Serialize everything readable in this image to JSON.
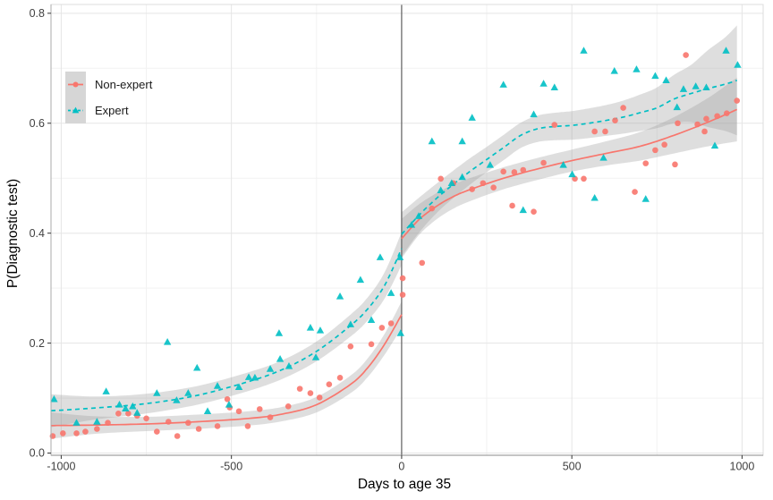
{
  "chart_data": {
    "type": "scatter",
    "subtype": "regression-discontinuity with loess smooth and confidence ribbons",
    "title": "",
    "xlabel": "Days to age 35",
    "ylabel": "P(Diagnostic test)",
    "xlim": [
      -1030,
      1062
    ],
    "ylim": [
      -0.004,
      0.816
    ],
    "x_ticks": [
      -1000,
      -500,
      0,
      500,
      1000
    ],
    "x_minor_ticks": [
      -750,
      -250,
      250,
      750
    ],
    "y_ticks": [
      0.0,
      0.2,
      0.4,
      0.6,
      0.8
    ],
    "y_minor_ticks": [
      0.1,
      0.3,
      0.5,
      0.7
    ],
    "cutoff_line_x": 0,
    "grid": true,
    "legend_position": "inside top-left",
    "band_color": "#9C9C9C",
    "band_opacity": 0.33,
    "cutoff_line_color": "#5f5f5f",
    "axis_text_color": "#404040",
    "series": [
      {
        "name": "Non-expert",
        "color": "#F8766D",
        "marker": "circle",
        "linestyle": "solid",
        "points": [
          [
            -1025,
            0.031
          ],
          [
            -995,
            0.036
          ],
          [
            -955,
            0.036
          ],
          [
            -929,
            0.039
          ],
          [
            -895,
            0.044
          ],
          [
            -863,
            0.055
          ],
          [
            -832,
            0.072
          ],
          [
            -803,
            0.072
          ],
          [
            -777,
            0.068
          ],
          [
            -750,
            0.063
          ],
          [
            -719,
            0.039
          ],
          [
            -685,
            0.057
          ],
          [
            -659,
            0.031
          ],
          [
            -627,
            0.055
          ],
          [
            -596,
            0.044
          ],
          [
            -541,
            0.049
          ],
          [
            -512,
            0.098
          ],
          [
            -505,
            0.083
          ],
          [
            -478,
            0.076
          ],
          [
            -452,
            0.049
          ],
          [
            -417,
            0.08
          ],
          [
            -386,
            0.065
          ],
          [
            -333,
            0.085
          ],
          [
            -299,
            0.117
          ],
          [
            -268,
            0.109
          ],
          [
            -241,
            0.101
          ],
          [
            -213,
            0.125
          ],
          [
            -181,
            0.137
          ],
          [
            -150,
            0.194
          ],
          [
            -89,
            0.198
          ],
          [
            -58,
            0.228
          ],
          [
            -31,
            0.236
          ],
          [
            3,
            0.288
          ],
          [
            3,
            0.318
          ],
          [
            60,
            0.346
          ],
          [
            89,
            0.445
          ],
          [
            115,
            0.499
          ],
          [
            152,
            0.491
          ],
          [
            207,
            0.48
          ],
          [
            239,
            0.491
          ],
          [
            270,
            0.483
          ],
          [
            299,
            0.512
          ],
          [
            325,
            0.45
          ],
          [
            331,
            0.511
          ],
          [
            357,
            0.515
          ],
          [
            388,
            0.439
          ],
          [
            417,
            0.528
          ],
          [
            449,
            0.597
          ],
          [
            509,
            0.499
          ],
          [
            535,
            0.499
          ],
          [
            567,
            0.585
          ],
          [
            598,
            0.585
          ],
          [
            627,
            0.605
          ],
          [
            651,
            0.628
          ],
          [
            685,
            0.475
          ],
          [
            717,
            0.527
          ],
          [
            745,
            0.551
          ],
          [
            772,
            0.561
          ],
          [
            803,
            0.525
          ],
          [
            811,
            0.6
          ],
          [
            835,
            0.724
          ],
          [
            869,
            0.598
          ],
          [
            890,
            0.585
          ],
          [
            895,
            0.608
          ],
          [
            927,
            0.613
          ],
          [
            955,
            0.618
          ],
          [
            985,
            0.641
          ]
        ],
        "smooth_left": [
          [
            -1030,
            0.05,
            0.024
          ],
          [
            -900,
            0.051,
            0.016
          ],
          [
            -750,
            0.053,
            0.013
          ],
          [
            -600,
            0.057,
            0.013
          ],
          [
            -450,
            0.063,
            0.013
          ],
          [
            -350,
            0.071,
            0.013
          ],
          [
            -250,
            0.088,
            0.014
          ],
          [
            -150,
            0.125,
            0.016
          ],
          [
            -100,
            0.155,
            0.017
          ],
          [
            -50,
            0.198,
            0.019
          ],
          [
            0,
            0.252,
            0.024
          ]
        ],
        "smooth_right": [
          [
            0,
            0.39,
            0.036
          ],
          [
            50,
            0.424,
            0.028
          ],
          [
            100,
            0.448,
            0.024
          ],
          [
            150,
            0.466,
            0.022
          ],
          [
            200,
            0.479,
            0.021
          ],
          [
            300,
            0.5,
            0.02
          ],
          [
            400,
            0.517,
            0.02
          ],
          [
            500,
            0.532,
            0.02
          ],
          [
            600,
            0.545,
            0.022
          ],
          [
            700,
            0.558,
            0.026
          ],
          [
            800,
            0.578,
            0.033
          ],
          [
            900,
            0.602,
            0.044
          ],
          [
            985,
            0.625,
            0.058
          ]
        ]
      },
      {
        "name": "Expert",
        "color": "#00BFC4",
        "marker": "triangle",
        "linestyle": "dashed",
        "points": [
          [
            -1021,
            0.098
          ],
          [
            -955,
            0.055
          ],
          [
            -895,
            0.057
          ],
          [
            -868,
            0.112
          ],
          [
            -829,
            0.088
          ],
          [
            -811,
            0.081
          ],
          [
            -790,
            0.085
          ],
          [
            -777,
            0.073
          ],
          [
            -719,
            0.109
          ],
          [
            -688,
            0.202
          ],
          [
            -661,
            0.096
          ],
          [
            -627,
            0.109
          ],
          [
            -601,
            0.155
          ],
          [
            -570,
            0.076
          ],
          [
            -541,
            0.122
          ],
          [
            -507,
            0.088
          ],
          [
            -478,
            0.12
          ],
          [
            -449,
            0.138
          ],
          [
            -431,
            0.137
          ],
          [
            -386,
            0.153
          ],
          [
            -360,
            0.218
          ],
          [
            -357,
            0.171
          ],
          [
            -331,
            0.158
          ],
          [
            -268,
            0.228
          ],
          [
            -252,
            0.174
          ],
          [
            -239,
            0.223
          ],
          [
            -181,
            0.285
          ],
          [
            -150,
            0.234
          ],
          [
            -121,
            0.315
          ],
          [
            -89,
            0.242
          ],
          [
            -63,
            0.356
          ],
          [
            -31,
            0.291
          ],
          [
            -5,
            0.356
          ],
          [
            -3,
            0.218
          ],
          [
            29,
            0.415
          ],
          [
            50,
            0.431
          ],
          [
            89,
            0.567
          ],
          [
            115,
            0.478
          ],
          [
            147,
            0.491
          ],
          [
            178,
            0.502
          ],
          [
            178,
            0.567
          ],
          [
            207,
            0.61
          ],
          [
            260,
            0.524
          ],
          [
            299,
            0.67
          ],
          [
            357,
            0.442
          ],
          [
            388,
            0.616
          ],
          [
            417,
            0.672
          ],
          [
            449,
            0.665
          ],
          [
            475,
            0.524
          ],
          [
            501,
            0.507
          ],
          [
            535,
            0.732
          ],
          [
            567,
            0.464
          ],
          [
            593,
            0.537
          ],
          [
            625,
            0.695
          ],
          [
            690,
            0.698
          ],
          [
            717,
            0.462
          ],
          [
            745,
            0.686
          ],
          [
            777,
            0.678
          ],
          [
            809,
            0.629
          ],
          [
            828,
            0.662
          ],
          [
            864,
            0.667
          ],
          [
            895,
            0.665
          ],
          [
            920,
            0.559
          ],
          [
            953,
            0.732
          ],
          [
            987,
            0.706
          ]
        ],
        "smooth_left": [
          [
            -1030,
            0.077,
            0.03
          ],
          [
            -900,
            0.082,
            0.021
          ],
          [
            -750,
            0.09,
            0.018
          ],
          [
            -600,
            0.105,
            0.017
          ],
          [
            -450,
            0.13,
            0.017
          ],
          [
            -350,
            0.152,
            0.017
          ],
          [
            -250,
            0.185,
            0.018
          ],
          [
            -150,
            0.232,
            0.02
          ],
          [
            -100,
            0.262,
            0.021
          ],
          [
            -50,
            0.305,
            0.024
          ],
          [
            0,
            0.372,
            0.03
          ]
        ],
        "smooth_right": [
          [
            0,
            0.398,
            0.04
          ],
          [
            50,
            0.432,
            0.032
          ],
          [
            100,
            0.462,
            0.027
          ],
          [
            150,
            0.488,
            0.025
          ],
          [
            200,
            0.512,
            0.024
          ],
          [
            250,
            0.534,
            0.023
          ],
          [
            300,
            0.556,
            0.023
          ],
          [
            350,
            0.578,
            0.023
          ],
          [
            400,
            0.59,
            0.024
          ],
          [
            450,
            0.594,
            0.025
          ],
          [
            500,
            0.596,
            0.026
          ],
          [
            550,
            0.6,
            0.027
          ],
          [
            600,
            0.605,
            0.028
          ],
          [
            650,
            0.611,
            0.03
          ],
          [
            700,
            0.619,
            0.033
          ],
          [
            750,
            0.628,
            0.037
          ],
          [
            800,
            0.644,
            0.044
          ],
          [
            850,
            0.654,
            0.052
          ],
          [
            900,
            0.663,
            0.07
          ],
          [
            950,
            0.671,
            0.085
          ],
          [
            985,
            0.678,
            0.1
          ]
        ]
      }
    ]
  }
}
